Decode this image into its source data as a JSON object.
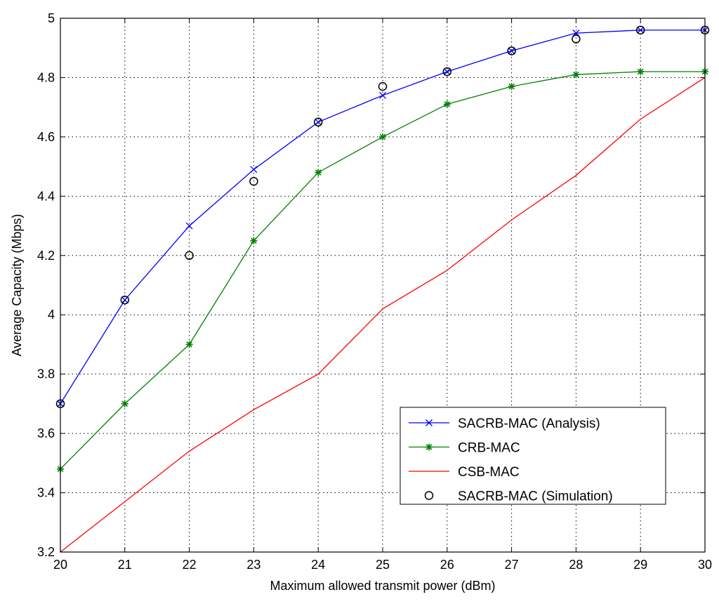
{
  "chart_data": {
    "type": "line",
    "title": "",
    "xlabel": "Maximum allowed transmit power (dBm)",
    "ylabel": "Average Capacity (Mbps)",
    "xlim": [
      20,
      30
    ],
    "ylim": [
      3.2,
      5.0
    ],
    "xticks": [
      "20",
      "21",
      "22",
      "23",
      "24",
      "25",
      "26",
      "27",
      "28",
      "29",
      "30"
    ],
    "yticks": [
      "3.2",
      "3.4",
      "3.6",
      "3.8",
      "4",
      "4.2",
      "4.4",
      "4.6",
      "4.8",
      "5"
    ],
    "grid": true,
    "legend_position": "bottom-right",
    "x": [
      20,
      21,
      22,
      23,
      24,
      25,
      26,
      27,
      28,
      29,
      30
    ],
    "series": [
      {
        "name": "SACRB-MAC (Analysis)",
        "color": "#0000ff",
        "marker": "x",
        "line": true,
        "values": [
          3.7,
          4.05,
          4.3,
          4.49,
          4.65,
          4.74,
          4.82,
          4.89,
          4.95,
          4.96,
          4.96
        ]
      },
      {
        "name": "CRB-MAC",
        "color": "#008000",
        "marker": "star",
        "line": true,
        "values": [
          3.48,
          3.7,
          3.9,
          4.25,
          4.48,
          4.6,
          4.71,
          4.77,
          4.81,
          4.82,
          4.82
        ]
      },
      {
        "name": "CSB-MAC",
        "color": "#ff0000",
        "marker": "none",
        "line": true,
        "values": [
          3.2,
          3.37,
          3.54,
          3.68,
          3.8,
          4.02,
          4.15,
          4.32,
          4.47,
          4.66,
          4.8
        ]
      },
      {
        "name": "SACRB-MAC (Simulation)",
        "color": "#000000",
        "marker": "circle",
        "line": false,
        "values": [
          3.7,
          4.05,
          4.2,
          4.45,
          4.65,
          4.77,
          4.82,
          4.89,
          4.93,
          4.96,
          4.96
        ]
      }
    ]
  }
}
